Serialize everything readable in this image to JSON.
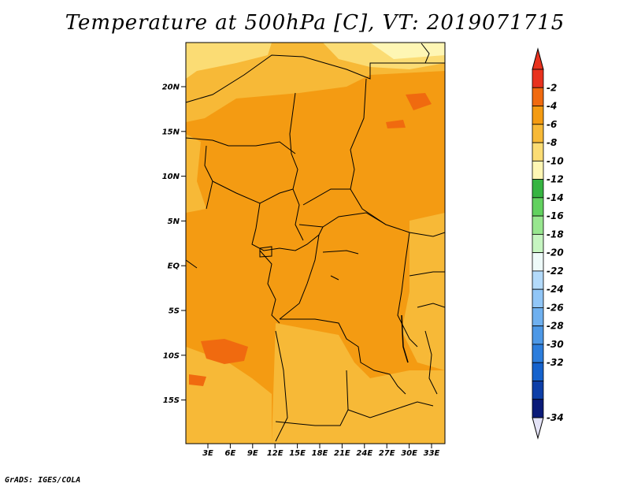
{
  "title": "Temperature at 500hPa [C], VT: 2019071715",
  "footer": "GrADS: IGES/COLA",
  "map": {
    "lat_labels": [
      "20N",
      "15N",
      "10N",
      "5N",
      "EQ",
      "5S",
      "10S",
      "15S"
    ],
    "lon_labels": [
      "3E",
      "6E",
      "9E",
      "12E",
      "15E",
      "18E",
      "21E",
      "24E",
      "27E",
      "30E",
      "33E"
    ]
  },
  "colorbar": {
    "levels": [
      "-2",
      "-4",
      "-6",
      "-8",
      "-10",
      "-12",
      "-14",
      "-16",
      "-18",
      "-20",
      "-22",
      "-24",
      "-26",
      "-28",
      "-30",
      "-32",
      "-34"
    ],
    "colors": [
      "#e8321e",
      "#f06a0f",
      "#f49b12",
      "#f7b937",
      "#fbdc74",
      "#fef6b4",
      "#36b441",
      "#62d15f",
      "#98e68f",
      "#c6f5c1",
      "#eefaf9",
      "#b3dafa",
      "#91c6f7",
      "#6fb0ef",
      "#4d98e6",
      "#2c7ddc",
      "#1562cd",
      "#0d3fa8",
      "#0a1a78"
    ],
    "top_color": "#e8321e",
    "bottom_color": "#e4e3f7"
  }
}
